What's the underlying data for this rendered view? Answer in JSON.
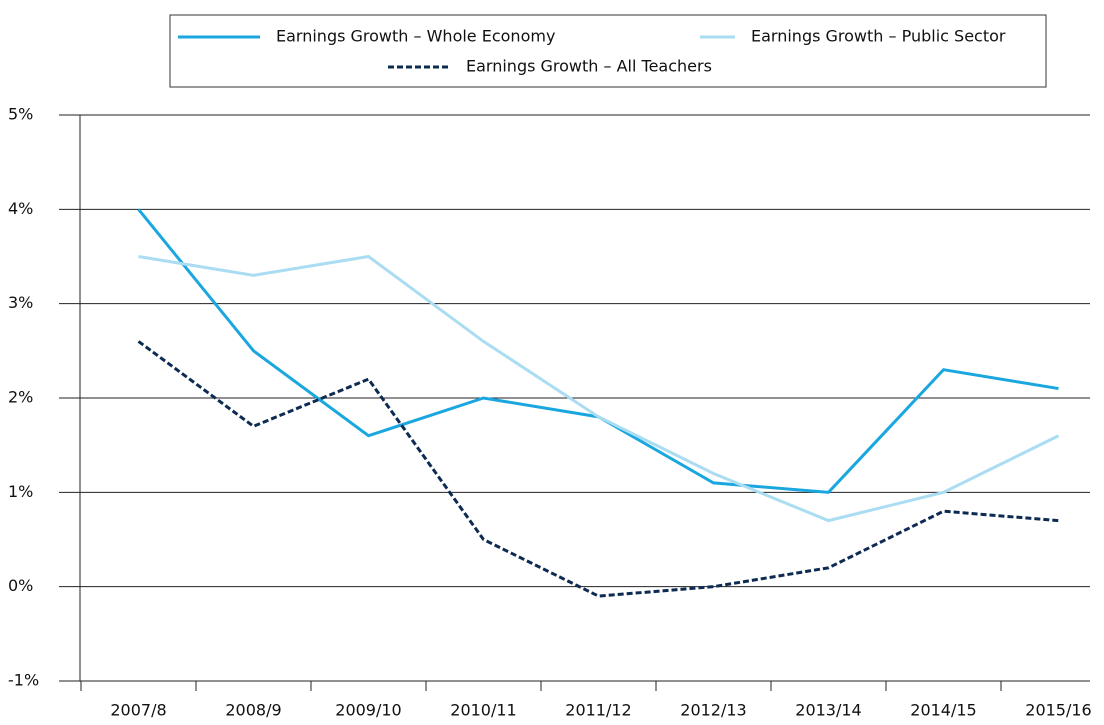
{
  "chart_data": {
    "type": "line",
    "categories": [
      "2007/8",
      "2008/9",
      "2009/10",
      "2010/11",
      "2011/12",
      "2012/13",
      "2013/14",
      "2014/15",
      "2015/16"
    ],
    "series": [
      {
        "name": "Earnings Growth – Whole Economy",
        "color": "#1aa7df",
        "style": "solid",
        "values": [
          4.0,
          2.5,
          1.6,
          2.0,
          1.8,
          1.1,
          1.0,
          2.3,
          2.1
        ]
      },
      {
        "name": "Earnings Growth – Public Sector",
        "color": "#aadcf2",
        "style": "solid",
        "values": [
          3.5,
          3.3,
          3.5,
          2.6,
          1.8,
          1.2,
          0.7,
          1.0,
          1.6
        ]
      },
      {
        "name": "Earnings Growth – All Teachers",
        "color": "#0d2b52",
        "style": "dashed",
        "values": [
          2.6,
          1.7,
          2.2,
          0.5,
          -0.1,
          0.0,
          0.2,
          0.8,
          0.7
        ]
      }
    ],
    "ylim": [
      -1,
      5
    ],
    "yticks": [
      {
        "value": -1,
        "label": "-1%"
      },
      {
        "value": 0,
        "label": "0%"
      },
      {
        "value": 1,
        "label": "1%"
      },
      {
        "value": 2,
        "label": "2%"
      },
      {
        "value": 3,
        "label": "3%"
      },
      {
        "value": 4,
        "label": "4%"
      },
      {
        "value": 5,
        "label": "5%"
      }
    ],
    "grid": true,
    "legend": "top"
  }
}
